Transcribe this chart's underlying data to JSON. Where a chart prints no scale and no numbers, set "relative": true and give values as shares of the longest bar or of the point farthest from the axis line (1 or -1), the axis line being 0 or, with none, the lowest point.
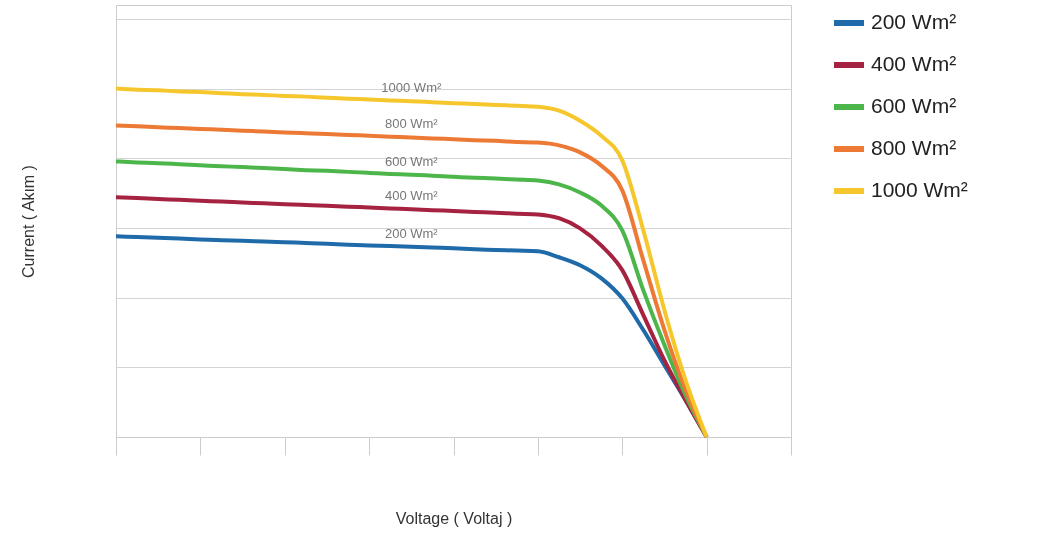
{
  "chart_data": {
    "type": "line",
    "relative": true,
    "xlabel": "Voltage ( Voltaj )",
    "ylabel": "Current ( Akım )",
    "legend": "right",
    "grid": "y",
    "categories": [
      null,
      null,
      null,
      null,
      null,
      null,
      null,
      null,
      null,
      null,
      null,
      null,
      null,
      null,
      null,
      null,
      null,
      null,
      null,
      null,
      null,
      null,
      null,
      null,
      null,
      null,
      null,
      null,
      null,
      null,
      null,
      null,
      null
    ],
    "series": [
      {
        "name": "200 Wm²",
        "color": "#1f6aa8",
        "values": [
          0.576,
          0.574,
          0.572,
          0.57,
          0.567,
          0.565,
          0.563,
          0.561,
          0.559,
          0.557,
          0.555,
          0.552,
          0.55,
          0.548,
          0.546,
          0.544,
          0.542,
          0.539,
          0.537,
          0.535,
          0.533,
          0.516,
          0.493,
          0.456,
          0.398,
          0.307,
          0.206,
          0.106,
          0,
          null,
          null,
          null,
          null
        ]
      },
      {
        "name": "400 Wm²",
        "color": "#a52240",
        "values": [
          0.688,
          0.686,
          0.683,
          0.681,
          0.678,
          0.676,
          0.673,
          0.671,
          0.668,
          0.666,
          0.664,
          0.661,
          0.659,
          0.656,
          0.654,
          0.651,
          0.649,
          0.646,
          0.644,
          0.641,
          0.639,
          0.628,
          0.599,
          0.55,
          0.479,
          0.35,
          0.22,
          0.106,
          0,
          null,
          null,
          null,
          null
        ]
      },
      {
        "name": "600 Wm²",
        "color": "#4db64a",
        "values": [
          0.791,
          0.788,
          0.786,
          0.783,
          0.78,
          0.777,
          0.775,
          0.772,
          0.769,
          0.766,
          0.764,
          0.761,
          0.758,
          0.755,
          0.753,
          0.75,
          0.747,
          0.744,
          0.742,
          0.739,
          0.736,
          0.725,
          0.702,
          0.665,
          0.593,
          0.421,
          0.264,
          0.12,
          0,
          null,
          null,
          null,
          null
        ]
      },
      {
        "name": "800 Wm²",
        "color": "#ec7a35",
        "values": [
          0.894,
          0.892,
          0.889,
          0.887,
          0.884,
          0.882,
          0.879,
          0.877,
          0.874,
          0.872,
          0.87,
          0.867,
          0.865,
          0.862,
          0.86,
          0.857,
          0.855,
          0.852,
          0.85,
          0.847,
          0.845,
          0.837,
          0.817,
          0.779,
          0.708,
          0.507,
          0.307,
          0.135,
          0,
          null,
          null,
          null,
          null
        ]
      },
      {
        "name": "1000 Wm²",
        "color": "#f6c72d",
        "values": [
          1.0,
          0.997,
          0.995,
          0.992,
          0.99,
          0.987,
          0.984,
          0.982,
          0.979,
          0.977,
          0.974,
          0.971,
          0.969,
          0.966,
          0.964,
          0.961,
          0.958,
          0.956,
          0.953,
          0.951,
          0.948,
          0.937,
          0.908,
          0.865,
          0.794,
          0.593,
          0.364,
          0.163,
          0,
          null,
          null,
          null,
          null
        ]
      }
    ],
    "annotations": [
      "1000 Wm²",
      "800 Wm²",
      "600 Wm²",
      "400 Wm²",
      "200 Wm²"
    ]
  }
}
